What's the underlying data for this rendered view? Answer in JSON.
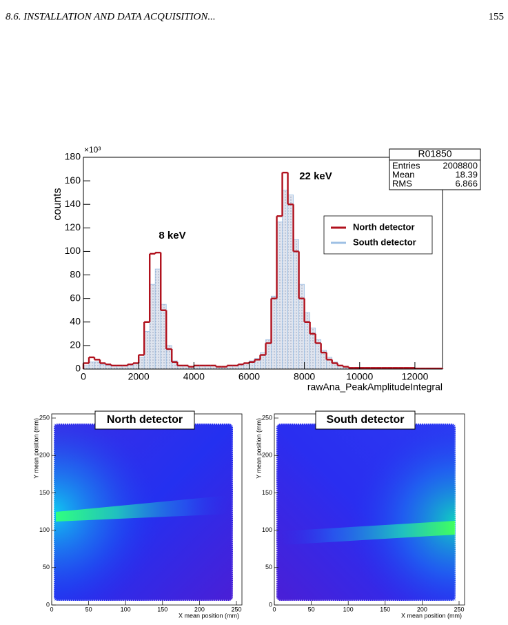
{
  "header": {
    "section": "8.6. INSTALLATION AND DATA ACQUISITION...",
    "page_number": "155"
  },
  "chart_data": [
    {
      "type": "histogram",
      "y_multiplier": "×10³",
      "y_label": "counts",
      "x_label": "rawAna_PeakAmplitudeIntegral",
      "bins": [
        0,
        200,
        400,
        600,
        800,
        1000,
        1200,
        1400,
        1600,
        1800,
        2000,
        2200,
        2400,
        2600,
        2800,
        3000,
        3200,
        3400,
        3600,
        3800,
        4000,
        4200,
        4400,
        4600,
        4800,
        5000,
        5200,
        5400,
        5600,
        5800,
        6000,
        6200,
        6400,
        6600,
        6800,
        7000,
        7200,
        7400,
        7600,
        7800,
        8000,
        8200,
        8400,
        8600,
        8800,
        9000,
        9200,
        9400,
        9600,
        9800,
        10000,
        10200,
        10400,
        10600,
        10800,
        11000,
        11200,
        11400,
        11600,
        11800,
        12000,
        12200,
        12400,
        12600,
        12800,
        13000
      ],
      "series": [
        {
          "name": "South detector",
          "color": "#9ec0e4",
          "fill": "#d3dae6",
          "values": [
            3,
            6,
            6,
            4,
            3,
            3,
            3,
            3,
            4,
            5,
            10,
            32,
            72,
            85,
            55,
            20,
            7,
            3,
            3,
            2,
            3,
            3,
            3,
            3,
            2,
            2,
            3,
            3,
            4,
            5,
            7,
            9,
            14,
            25,
            62,
            125,
            152,
            148,
            110,
            72,
            48,
            35,
            25,
            16,
            10,
            6,
            3,
            2,
            1,
            1,
            1,
            1,
            1,
            1,
            1,
            1,
            1,
            1,
            1,
            1,
            0.5,
            0.5,
            0.5,
            0.5,
            0.5
          ]
        },
        {
          "name": "North detector",
          "color": "#b0101c",
          "values": [
            5,
            10,
            8,
            5,
            4,
            3,
            3,
            3,
            4,
            5,
            12,
            40,
            98,
            99,
            50,
            17,
            6,
            3,
            3,
            2,
            3,
            3,
            3,
            3,
            2,
            2,
            3,
            3,
            4,
            5,
            6,
            8,
            12,
            22,
            60,
            130,
            167,
            140,
            100,
            60,
            40,
            30,
            22,
            14,
            8,
            5,
            3,
            2,
            1,
            1,
            1,
            1,
            1,
            1,
            1,
            1,
            1,
            1,
            1,
            1,
            0.5,
            0.5,
            0.5,
            0.5,
            0.5
          ]
        }
      ],
      "legend_order": [
        1,
        0
      ],
      "legend": "right",
      "xlim": [
        0,
        13000
      ],
      "ylim": [
        0,
        180
      ],
      "xticks": [
        0,
        2000,
        4000,
        6000,
        8000,
        10000,
        12000
      ],
      "yticks": [
        0,
        20,
        40,
        60,
        80,
        100,
        120,
        140,
        160,
        180
      ],
      "annotations": [
        "8 keV",
        "22 keV"
      ],
      "stats": {
        "title": "R01850",
        "rows": [
          [
            "Entries",
            2008800
          ],
          [
            "Mean",
            18.39
          ],
          [
            "RMS",
            6.866
          ]
        ]
      }
    },
    {
      "type": "heatmap",
      "title": "North detector",
      "x_label": "X mean position (mm)",
      "y_label": "Y mean position (mm)",
      "xlim": [
        0,
        250
      ],
      "ylim": [
        0,
        250
      ],
      "xticks": [
        0,
        50,
        100,
        150,
        200,
        250
      ],
      "yticks": [
        0,
        50,
        100,
        150,
        200,
        250
      ]
    },
    {
      "type": "heatmap",
      "title": "South detector",
      "x_label": "X mean position (mm)",
      "y_label": "Y mean position (mm)",
      "xlim": [
        0,
        250
      ],
      "ylim": [
        0,
        250
      ],
      "xticks": [
        0,
        50,
        100,
        150,
        200,
        250
      ],
      "yticks": [
        0,
        50,
        100,
        150,
        200,
        250
      ]
    }
  ]
}
